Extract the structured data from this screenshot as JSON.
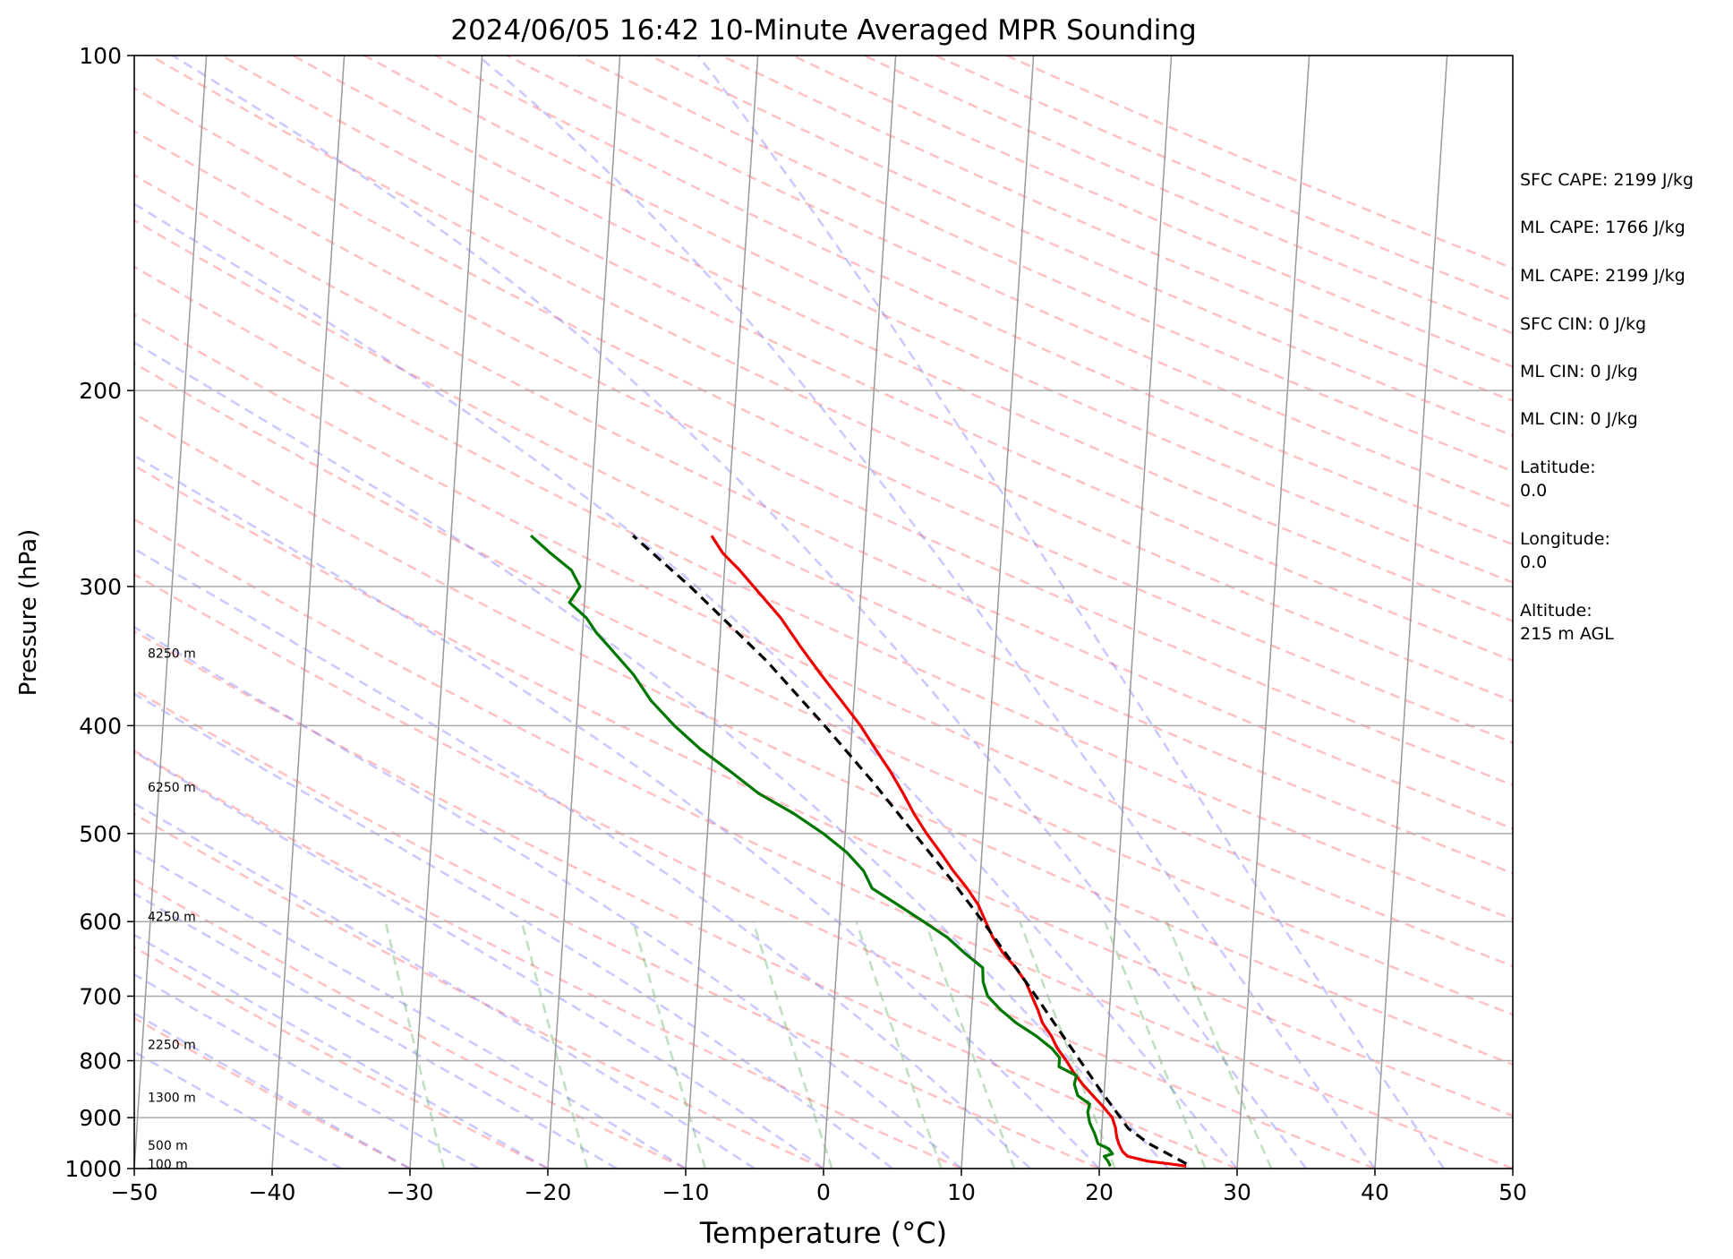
{
  "chart_data": {
    "type": "line",
    "title": "2024/06/05 16:42 10-Minute Averaged MPR Sounding",
    "xlabel": "Temperature (°C)",
    "ylabel": "Pressure (hPa)",
    "xlim": [
      -50,
      50
    ],
    "ylim": [
      1000,
      100
    ],
    "y_scale": "log",
    "grid": true,
    "x_ticks": [
      "−50",
      "−40",
      "−30",
      "−20",
      "−10",
      "0",
      "10",
      "20",
      "30",
      "40",
      "50"
    ],
    "y_ticks": [
      {
        "p": 100,
        "label": "100"
      },
      {
        "p": 200,
        "label": "200"
      },
      {
        "p": 300,
        "label": "300"
      },
      {
        "p": 400,
        "label": "400"
      },
      {
        "p": 500,
        "label": "500"
      },
      {
        "p": 600,
        "label": "600"
      },
      {
        "p": 700,
        "label": "700"
      },
      {
        "p": 800,
        "label": "800"
      },
      {
        "p": 900,
        "label": "900"
      },
      {
        "p": 1000,
        "label": "1000"
      }
    ],
    "height_labels": [
      {
        "p": 993,
        "label": "100 m"
      },
      {
        "p": 955,
        "label": "500 m"
      },
      {
        "p": 865,
        "label": "1300 m"
      },
      {
        "p": 775,
        "label": "2250 m"
      },
      {
        "p": 595,
        "label": "4250 m"
      },
      {
        "p": 455,
        "label": "6250 m"
      },
      {
        "p": 345,
        "label": "8250 m"
      }
    ],
    "series": [
      {
        "role": "temperature",
        "color": "#ee0000",
        "dashed": false,
        "p": [
          995,
          990,
          985,
          975,
          965,
          950,
          935,
          920,
          900,
          880,
          860,
          840,
          820,
          800,
          780,
          760,
          740,
          720,
          700,
          680,
          660,
          640,
          620,
          600,
          580,
          560,
          540,
          520,
          500,
          480,
          460,
          440,
          420,
          400,
          380,
          360,
          340,
          320,
          300,
          290,
          280,
          270
        ],
        "t": [
          26.3,
          25.0,
          23.5,
          22.0,
          21.6,
          21.3,
          21.1,
          21.0,
          20.7,
          20.0,
          19.2,
          18.4,
          17.7,
          17.1,
          16.4,
          15.9,
          15.2,
          14.8,
          14.3,
          13.8,
          13.0,
          12.0,
          11.2,
          10.6,
          10.0,
          9.1,
          8.0,
          7.0,
          5.9,
          4.9,
          4.0,
          3.0,
          1.8,
          0.6,
          -0.9,
          -2.5,
          -4.1,
          -5.7,
          -7.8,
          -8.9,
          -10.2,
          -11.1
        ]
      },
      {
        "role": "dewpoint",
        "color": "#007700",
        "dashed": false,
        "p": [
          995,
          985,
          975,
          970,
          960,
          950,
          930,
          910,
          890,
          875,
          860,
          840,
          825,
          810,
          795,
          780,
          760,
          740,
          720,
          700,
          680,
          660,
          640,
          620,
          600,
          580,
          560,
          540,
          520,
          500,
          480,
          460,
          440,
          420,
          400,
          380,
          360,
          340,
          330,
          320,
          310,
          300,
          290,
          280,
          270
        ],
        "t": [
          20.8,
          20.6,
          20.3,
          20.9,
          20.6,
          19.8,
          19.5,
          19.1,
          18.9,
          19.0,
          18.1,
          17.8,
          17.9,
          16.6,
          16.6,
          16.0,
          14.8,
          13.3,
          12.1,
          11.1,
          10.7,
          10.6,
          9.2,
          7.9,
          6.1,
          4.2,
          2.2,
          1.5,
          0.2,
          -1.6,
          -3.8,
          -6.5,
          -8.6,
          -10.9,
          -12.9,
          -14.7,
          -16.1,
          -18.0,
          -19.0,
          -19.8,
          -21.1,
          -20.4,
          -21.1,
          -22.7,
          -24.2
        ]
      },
      {
        "role": "parcel",
        "color": "#000000",
        "dashed": true,
        "p": [
          990,
          950,
          920,
          900,
          850,
          800,
          750,
          700,
          650,
          600,
          550,
          500,
          450,
          400,
          350,
          300,
          270
        ],
        "t": [
          26.3,
          23.5,
          21.9,
          21.3,
          19.7,
          18.1,
          16.4,
          14.6,
          12.6,
          10.4,
          7.9,
          5.0,
          1.8,
          -2.0,
          -6.5,
          -12.4,
          -16.8
        ]
      }
    ],
    "legend": "none"
  },
  "annotations": {
    "sfc_cape": "SFC CAPE: 2199 J/kg",
    "ml_cape_1": "ML CAPE: 1766 J/kg",
    "ml_cape_2": "ML CAPE: 2199 J/kg",
    "sfc_cin": "SFC CIN: 0 J/kg",
    "ml_cin_1": "ML CIN: 0 J/kg",
    "ml_cin_2": "ML CIN: 0 J/kg",
    "latitude": "Latitude:\n0.0",
    "longitude": "Longitude:\n0.0",
    "altitude": "Altitude:\n215 m AGL"
  }
}
